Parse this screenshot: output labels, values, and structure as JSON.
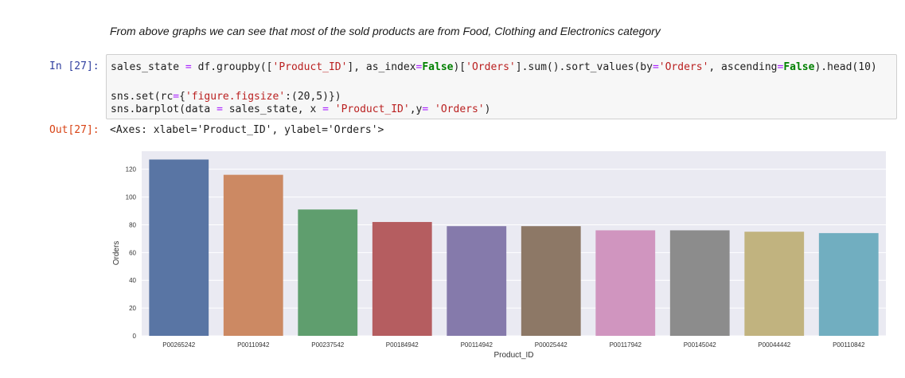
{
  "markdown": {
    "text": "From above graphs we can see that most of the sold products are from Food, Clothing and Electronics category"
  },
  "cell": {
    "in_prompt": "In [27]:",
    "out_prompt": "Out[27]:",
    "output_text": "<Axes: xlabel='Product_ID', ylabel='Orders'>",
    "code": {
      "line1": {
        "a": "sales_state ",
        "b": "=",
        "c": " df.groupby([",
        "d": "'Product_ID'",
        "e": "], as_index",
        "f": "=",
        "g": "False",
        "h": ")[",
        "i": "'Orders'",
        "j": "].sum().sort_values(by",
        "k": "=",
        "l": "'Orders'",
        "m": ", ascending",
        "n": "=",
        "o": "False",
        "p": ").head(10)"
      },
      "line2": {
        "a": "sns.set(rc",
        "b": "=",
        "c": "{",
        "d": "'figure.figsize'",
        "e": ":(20,5)})"
      },
      "line3": {
        "a": "sns.barplot(data ",
        "b": "=",
        "c": " sales_state, x ",
        "d": "=",
        "e": " ",
        "f": "'Product_ID'",
        "g": ",y",
        "h": "=",
        "i": " ",
        "j": "'Orders'",
        "k": ")"
      }
    }
  },
  "chart_data": {
    "type": "bar",
    "categories": [
      "P00265242",
      "P00110942",
      "P00237542",
      "P00184942",
      "P00114942",
      "P00025442",
      "P00117942",
      "P00145042",
      "P00044442",
      "P00110842"
    ],
    "values": [
      127,
      116,
      91,
      82,
      79,
      79,
      76,
      76,
      75,
      74
    ],
    "colors": [
      "#5975a4",
      "#cc8963",
      "#5f9e6e",
      "#b55d60",
      "#857aab",
      "#8d7866",
      "#d095bf",
      "#8c8c8c",
      "#c1b37f",
      "#71aec0"
    ],
    "title": "",
    "xlabel": "Product_ID",
    "ylabel": "Orders",
    "ylim": [
      0,
      133
    ],
    "yticks": [
      "0",
      "20",
      "40",
      "60",
      "80",
      "100",
      "120"
    ],
    "grid": true,
    "background": "#eaeaf2"
  }
}
